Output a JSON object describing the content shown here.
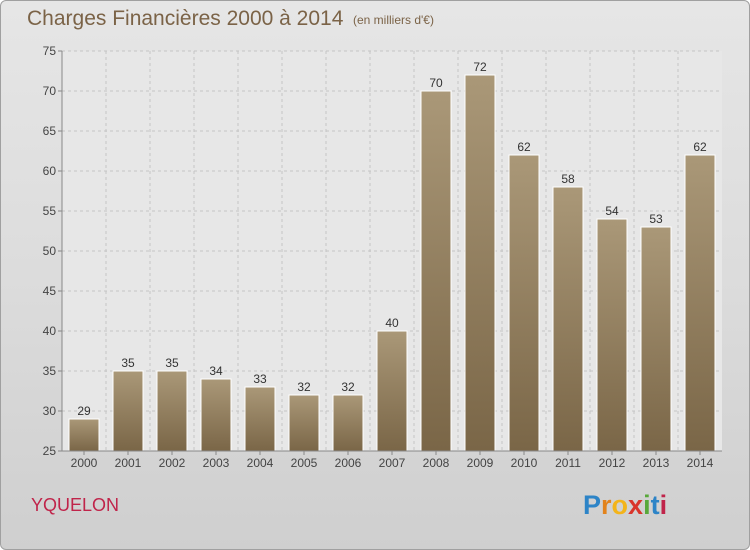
{
  "header": {
    "title": "Charges Financières 2000 à 2014",
    "subtitle": "(en milliers d'€)"
  },
  "footer": {
    "commune": "YQUELON",
    "logo_text": "Proxiti"
  },
  "colors": {
    "bar_top": "#aa9878",
    "bar_bottom": "#7a6647",
    "title": "#7b6347",
    "commune": "#c0244a"
  },
  "chart_data": {
    "type": "bar",
    "title": "Charges Financières 2000 à 2014",
    "subtitle": "(en milliers d'€)",
    "categories": [
      "2000",
      "2001",
      "2002",
      "2003",
      "2004",
      "2005",
      "2006",
      "2007",
      "2008",
      "2009",
      "2010",
      "2011",
      "2012",
      "2013",
      "2014"
    ],
    "values": [
      29,
      35,
      35,
      34,
      33,
      32,
      32,
      40,
      70,
      72,
      62,
      58,
      54,
      53,
      62
    ],
    "ylim": [
      25,
      75
    ],
    "yticks": [
      25,
      30,
      35,
      40,
      45,
      50,
      55,
      60,
      65,
      70,
      75
    ],
    "grid": true,
    "data_labels": true
  }
}
